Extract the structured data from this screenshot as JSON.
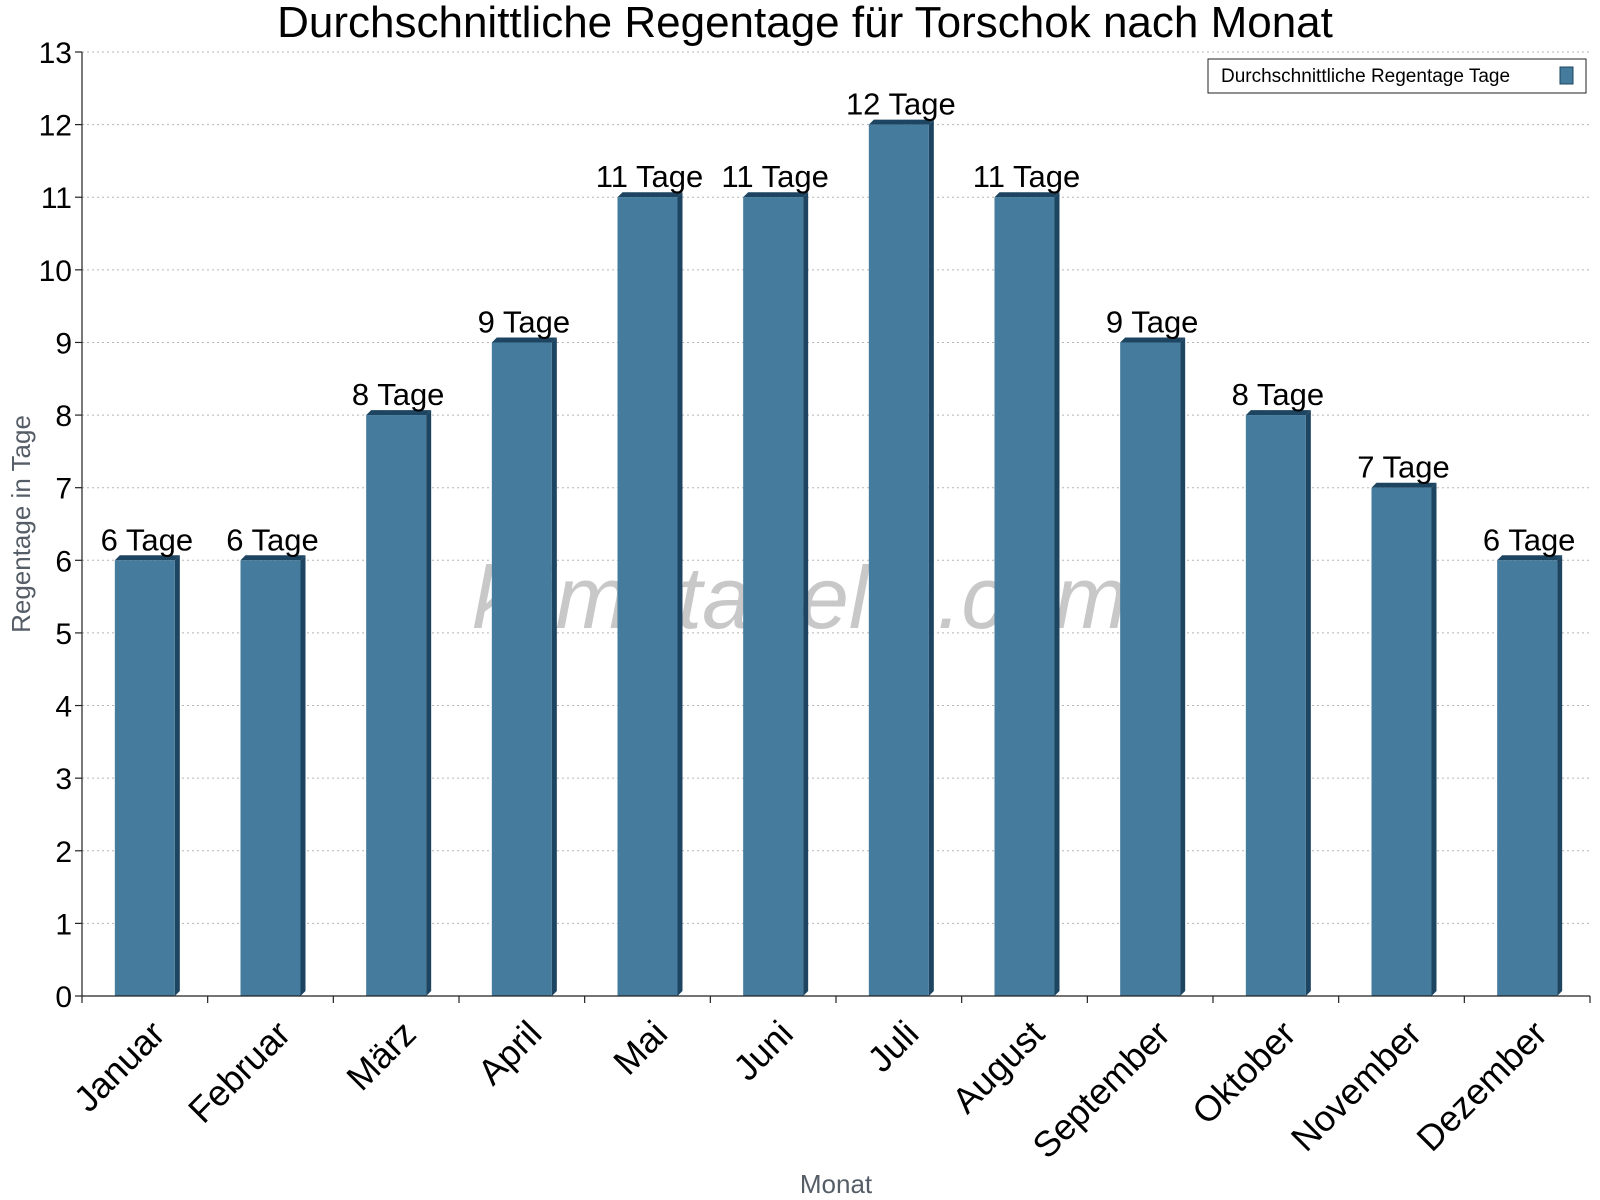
{
  "chart_data": {
    "type": "bar",
    "title": "Durchschnittliche Regentage für Torschok nach Monat",
    "xlabel": "Monat",
    "ylabel": "Regentage in Tage",
    "ylim": [
      0,
      13
    ],
    "yticks": [
      "0",
      "1",
      "2",
      "3",
      "4",
      "5",
      "6",
      "7",
      "8",
      "9",
      "10",
      "11",
      "12",
      "13"
    ],
    "grid": true,
    "legend_position": "top-right",
    "categories": [
      "Januar",
      "Februar",
      "März",
      "April",
      "Mai",
      "Juni",
      "Juli",
      "August",
      "September",
      "Oktober",
      "November",
      "Dezember"
    ],
    "series": [
      {
        "name": "Durchschnittliche Regentage Tage",
        "color": "#457b9d",
        "values": [
          6,
          6,
          8,
          9,
          11,
          11,
          12,
          11,
          9,
          8,
          7,
          6
        ],
        "labels": [
          "6 Tage",
          "6 Tage",
          "8 Tage",
          "9 Tage",
          "11 Tage",
          "11 Tage",
          "12 Tage",
          "11 Tage",
          "9 Tage",
          "8 Tage",
          "7 Tage",
          "6 Tage"
        ]
      }
    ],
    "watermark": "klimatabelle.com"
  }
}
